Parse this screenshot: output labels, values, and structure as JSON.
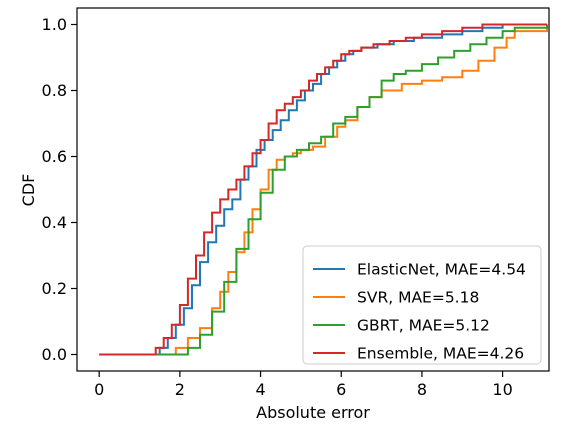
{
  "chart_data": {
    "type": "line",
    "step": true,
    "xlabel": "Absolute error",
    "ylabel": "CDF",
    "xlim": [
      -0.55,
      11.15
    ],
    "ylim": [
      -0.05,
      1.05
    ],
    "xticks": [
      0,
      2,
      4,
      6,
      8,
      10
    ],
    "yticks": [
      0.0,
      0.2,
      0.4,
      0.6,
      0.8,
      1.0
    ],
    "xtick_labels": [
      "0",
      "2",
      "4",
      "6",
      "8",
      "10"
    ],
    "ytick_labels": [
      "0.0",
      "0.2",
      "0.4",
      "0.6",
      "0.8",
      "1.0"
    ],
    "grid": false,
    "legend_position": "bottom-right",
    "series": [
      {
        "name": "ElasticNet, MAE=4.54",
        "color": "#1f77b4",
        "x": [
          0.0,
          1.5,
          1.7,
          1.9,
          2.1,
          2.3,
          2.5,
          2.7,
          2.9,
          3.1,
          3.3,
          3.5,
          3.7,
          3.9,
          4.1,
          4.3,
          4.5,
          4.7,
          4.9,
          5.1,
          5.3,
          5.5,
          5.7,
          5.9,
          6.1,
          6.3,
          6.5,
          6.9,
          7.3,
          7.8,
          8.5,
          9.0,
          9.5,
          10.0,
          11.1
        ],
        "y": [
          0.0,
          0.02,
          0.05,
          0.09,
          0.14,
          0.21,
          0.28,
          0.34,
          0.39,
          0.44,
          0.47,
          0.53,
          0.57,
          0.62,
          0.65,
          0.68,
          0.71,
          0.74,
          0.77,
          0.8,
          0.82,
          0.85,
          0.87,
          0.89,
          0.91,
          0.92,
          0.93,
          0.94,
          0.95,
          0.96,
          0.97,
          0.98,
          0.99,
          1.0,
          1.0
        ]
      },
      {
        "name": "SVR, MAE=5.18",
        "color": "#ff7f0e",
        "x": [
          0.0,
          1.9,
          2.2,
          2.5,
          2.8,
          3.0,
          3.2,
          3.4,
          3.6,
          3.8,
          4.0,
          4.2,
          4.4,
          4.6,
          4.8,
          5.0,
          5.3,
          5.6,
          5.9,
          6.1,
          6.4,
          6.7,
          7.0,
          7.5,
          8.0,
          8.5,
          9.0,
          9.4,
          9.8,
          10.1,
          10.3,
          11.1
        ],
        "y": [
          0.0,
          0.02,
          0.05,
          0.08,
          0.14,
          0.19,
          0.25,
          0.31,
          0.37,
          0.44,
          0.5,
          0.56,
          0.59,
          0.6,
          0.61,
          0.62,
          0.63,
          0.66,
          0.69,
          0.71,
          0.75,
          0.78,
          0.8,
          0.82,
          0.83,
          0.84,
          0.86,
          0.89,
          0.93,
          0.96,
          0.98,
          1.0
        ]
      },
      {
        "name": "GBRT, MAE=5.12",
        "color": "#2ca02c",
        "x": [
          0.0,
          2.2,
          2.5,
          2.8,
          3.1,
          3.4,
          3.7,
          4.0,
          4.3,
          4.6,
          4.9,
          5.2,
          5.5,
          5.8,
          6.1,
          6.4,
          6.7,
          7.0,
          7.3,
          7.6,
          8.0,
          8.4,
          8.8,
          9.2,
          9.6,
          10.0,
          10.3,
          11.1
        ],
        "y": [
          0.0,
          0.02,
          0.06,
          0.13,
          0.22,
          0.32,
          0.41,
          0.49,
          0.56,
          0.6,
          0.62,
          0.64,
          0.66,
          0.7,
          0.72,
          0.75,
          0.78,
          0.83,
          0.85,
          0.86,
          0.88,
          0.9,
          0.92,
          0.94,
          0.96,
          0.98,
          0.99,
          1.0
        ]
      },
      {
        "name": "Ensemble, MAE=4.26",
        "color": "#d62728",
        "x": [
          0.0,
          1.4,
          1.6,
          1.8,
          2.0,
          2.2,
          2.4,
          2.6,
          2.8,
          3.0,
          3.2,
          3.4,
          3.6,
          3.8,
          4.0,
          4.2,
          4.4,
          4.6,
          4.8,
          5.0,
          5.2,
          5.4,
          5.6,
          5.8,
          6.0,
          6.2,
          6.5,
          6.8,
          7.2,
          7.6,
          8.0,
          8.5,
          9.0,
          9.5,
          11.1
        ],
        "y": [
          0.0,
          0.02,
          0.05,
          0.09,
          0.15,
          0.23,
          0.3,
          0.37,
          0.43,
          0.47,
          0.5,
          0.53,
          0.57,
          0.61,
          0.65,
          0.7,
          0.74,
          0.76,
          0.78,
          0.8,
          0.83,
          0.85,
          0.87,
          0.89,
          0.91,
          0.92,
          0.93,
          0.94,
          0.95,
          0.96,
          0.97,
          0.98,
          0.99,
          1.0,
          1.0
        ]
      }
    ]
  }
}
